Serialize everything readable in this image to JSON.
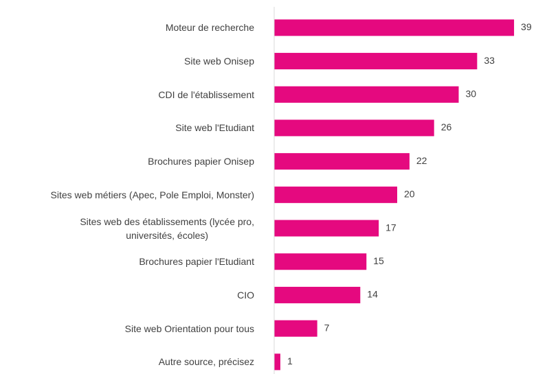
{
  "chart_data": {
    "type": "hbar",
    "categories": [
      "Moteur de recherche",
      "Site web Onisep",
      "CDI de l'établissement",
      "Site web l'Etudiant",
      "Brochures papier Onisep",
      "Sites web métiers (Apec, Pole Emploi, Monster)",
      "Sites web des établissements (lycée pro,\nuniversités, écoles)",
      "Brochures papier l'Etudiant",
      "CIO",
      "Site web Orientation pour tous",
      "Autre source, précisez"
    ],
    "values": [
      39,
      33,
      30,
      26,
      22,
      20,
      17,
      15,
      14,
      7,
      1
    ],
    "color": "#e5097f",
    "xlim": [
      0,
      40
    ]
  }
}
